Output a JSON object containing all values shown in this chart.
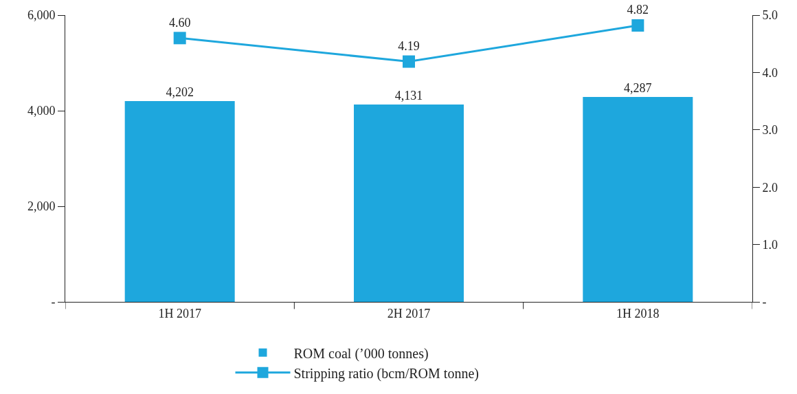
{
  "chart_data": {
    "type": "bar",
    "categories": [
      "1H 2017",
      "2H 2017",
      "1H 2018"
    ],
    "series": [
      {
        "name": "ROM coal (’000 tonnes)",
        "color": "#1ea7dd",
        "values": [
          4202,
          4131,
          4287
        ],
        "value_labels": [
          "4,202",
          "4,131",
          "4,287"
        ]
      },
      {
        "name": "Stripping ratio (bcm/ROM tonne)",
        "type": "line",
        "axis": "y2",
        "color": "#1ea7dd",
        "marker": "square",
        "values": [
          4.6,
          4.19,
          4.82
        ],
        "value_labels": [
          "4.60",
          "4.19",
          "4.82"
        ]
      }
    ],
    "ylim": [
      0,
      6000
    ],
    "yticks": [
      {
        "value": 0,
        "label": "-"
      },
      {
        "value": 2000,
        "label": "2,000"
      },
      {
        "value": 4000,
        "label": "4,000"
      },
      {
        "value": 6000,
        "label": "6,000"
      }
    ],
    "y2lim": [
      0,
      5
    ],
    "y2ticks": [
      {
        "value": 0,
        "label": "-"
      },
      {
        "value": 1,
        "label": "1.0"
      },
      {
        "value": 2,
        "label": "2.0"
      },
      {
        "value": 3,
        "label": "3.0"
      },
      {
        "value": 4,
        "label": "4.0"
      },
      {
        "value": 5,
        "label": "5.0"
      }
    ],
    "grid": false,
    "legend": "bottom"
  }
}
